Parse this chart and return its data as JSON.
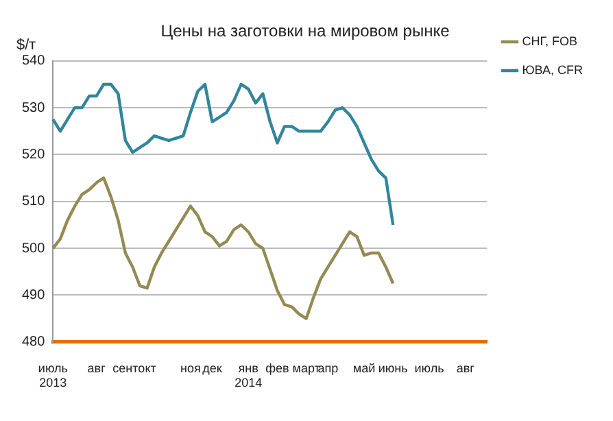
{
  "chart_data": {
    "type": "line",
    "title": "Цены на заготовки на мировом рынке",
    "ylabel": "$/т",
    "categories": [
      "июль\n2013",
      null,
      null,
      null,
      null,
      null,
      "авг",
      null,
      null,
      null,
      "сент",
      null,
      null,
      "окт",
      null,
      null,
      null,
      null,
      null,
      "ноя",
      null,
      null,
      "дек",
      null,
      null,
      null,
      null,
      "янв\n2014",
      null,
      null,
      null,
      "фев",
      null,
      null,
      null,
      "март",
      null,
      null,
      "апр",
      null,
      null,
      null,
      null,
      "май",
      null,
      null,
      null,
      "июнь",
      null,
      null,
      null,
      null,
      "июль",
      null,
      null,
      null,
      null,
      "авг",
      null,
      null,
      null
    ],
    "series": [
      {
        "name": "СНГ, FOB",
        "color": "#948a54",
        "values": [
          500,
          502,
          506,
          509,
          511.5,
          512.5,
          514,
          515,
          511,
          506,
          499,
          496,
          492,
          491.5,
          496,
          499,
          501.5,
          504,
          506.5,
          509,
          507,
          503.5,
          502.5,
          500.5,
          501.5,
          504,
          505,
          503.5,
          501,
          500,
          495.5,
          491,
          488,
          487.5,
          486,
          485,
          489.5,
          493.5,
          496,
          498.5,
          501,
          503.5,
          502.5,
          498.5,
          499,
          499,
          496,
          492.5,
          null,
          null,
          null,
          null,
          null,
          null,
          null,
          null,
          null,
          null,
          null,
          null,
          null
        ]
      },
      {
        "name": "ЮВА, CFR",
        "color": "#31859c",
        "values": [
          527.5,
          525,
          527.5,
          530,
          530,
          532.5,
          532.5,
          535,
          535,
          533,
          523,
          520.5,
          521.5,
          522.5,
          524,
          523.5,
          523,
          523.5,
          524,
          529,
          533.5,
          535,
          527,
          528,
          529,
          531.5,
          535,
          534,
          531,
          533,
          527,
          522.5,
          526,
          526,
          525,
          525,
          525,
          525,
          527,
          529.5,
          530,
          528.5,
          526,
          522.5,
          519,
          516.5,
          515,
          505,
          null,
          null,
          null,
          null,
          null,
          null,
          null,
          null,
          null,
          null,
          null,
          null,
          null
        ]
      }
    ],
    "ylim": [
      480,
      540
    ],
    "yticks": [
      480,
      490,
      500,
      510,
      520,
      530,
      540
    ],
    "grid": "y",
    "legend": "right",
    "marker": "none",
    "line_style": "solid"
  }
}
